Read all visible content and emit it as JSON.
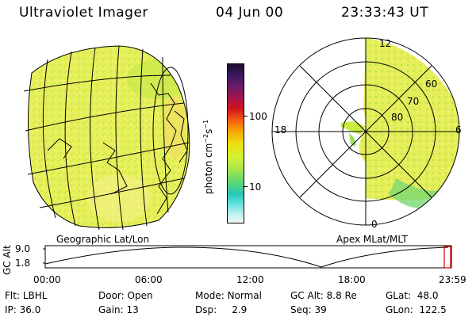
{
  "header": {
    "instrument": "Ultraviolet Imager",
    "date": "04 Jun 00",
    "time": "23:33:43 UT"
  },
  "colorbar": {
    "label": "photon cm⁻²s⁻¹",
    "label_main": "photon cm",
    "label_exp1": "−2",
    "label_s": "s",
    "label_exp2": "−1",
    "ticks": [
      "100",
      "10"
    ],
    "colors": [
      "#1a0f2e",
      "#3a1860",
      "#6b1a6b",
      "#a0154a",
      "#d1121e",
      "#f35a10",
      "#f6a300",
      "#f0dd10",
      "#d8f030",
      "#a8e84a",
      "#60d870",
      "#28c8b8",
      "#60e0e0",
      "#b8f0f0",
      "#eefafa"
    ]
  },
  "left_panel": {
    "caption": "Geographic Lat/Lon"
  },
  "right_panel": {
    "caption": "Apex MLat/MLT",
    "mlt_labels": {
      "top": "12",
      "left": "18",
      "right": "6",
      "bottom": "0"
    },
    "lat_labels": [
      "80",
      "70",
      "60"
    ]
  },
  "altitude_plot": {
    "axis_label": "GC Alt",
    "y_ticks": [
      "9.0",
      "1.8"
    ],
    "x_ticks": [
      "00:00",
      "06:00",
      "12:00",
      "18:00",
      "23:59"
    ],
    "marker_color": "#dd0000"
  },
  "info": {
    "flt_label": "Flt:",
    "flt_value": "LBHL",
    "door_label": "Door:",
    "door_value": "Open",
    "mode_label": "Mode:",
    "mode_value": "Normal",
    "gcalt_label": "GC Alt:",
    "gcalt_value": "8.8 Re",
    "glat_label": "GLat:",
    "glat_value": "48.0",
    "ip_label": "IP:",
    "ip_value": "36.0",
    "gain_label": "Gain:",
    "gain_value": "13",
    "dsp_label": "Dsp:",
    "dsp_value": "2.9",
    "seq_label": "Seq:",
    "seq_value": "39",
    "glon_label": "GLon:",
    "glon_value": "122.5"
  }
}
